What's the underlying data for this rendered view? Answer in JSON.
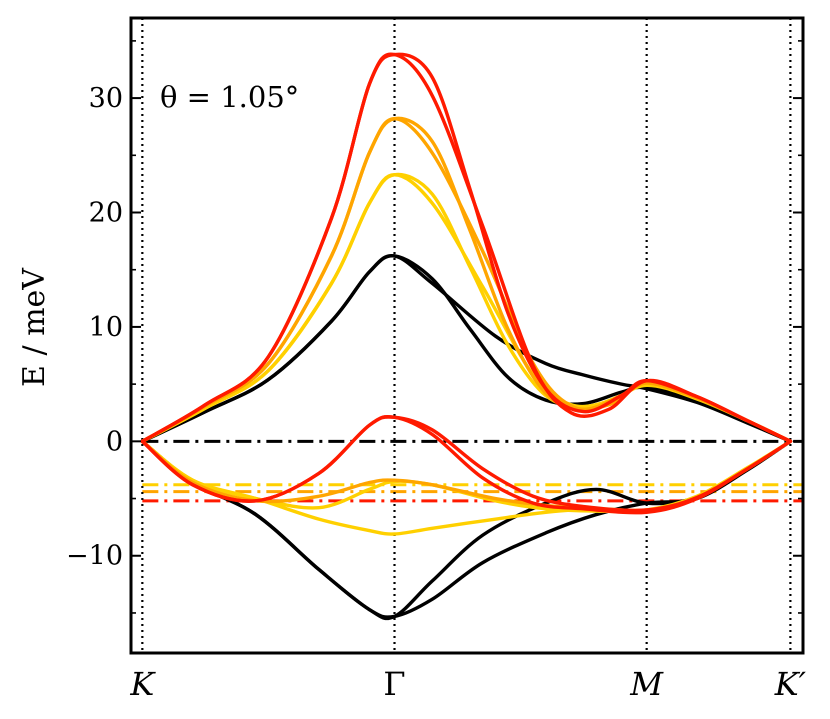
{
  "chart_data": {
    "type": "line",
    "title": "",
    "annotation": "θ = 1.05°",
    "ylabel": "E / meV",
    "xlabel": "",
    "ylim": [
      -18.5,
      37
    ],
    "yticks": [
      -10,
      0,
      10,
      20,
      30
    ],
    "ytick_labels": [
      "−10",
      "0",
      "10",
      "20",
      "30"
    ],
    "k_points": [
      {
        "label": "K",
        "x": 0.0,
        "italic": true
      },
      {
        "label": "Γ",
        "x": 1.0,
        "italic": false
      },
      {
        "label": "M",
        "x": 2.0,
        "italic": true
      },
      {
        "label": "K′",
        "x": 2.57,
        "italic": true
      }
    ],
    "xlim": [
      -0.045,
      2.62
    ],
    "grid": false,
    "colors": {
      "black": "#000000",
      "yellow": "#ffd000",
      "orange": "#ffa500",
      "red": "#ff1a00"
    },
    "reference_lines": [
      {
        "y": 0.0,
        "color": "#000000",
        "style": "dashdot"
      },
      {
        "y": -3.8,
        "color": "#ffd000",
        "style": "dashdot"
      },
      {
        "y": -4.4,
        "color": "#ffa500",
        "style": "dashdot"
      },
      {
        "y": -5.2,
        "color": "#ff1a00",
        "style": "dashdot"
      }
    ],
    "series": [
      {
        "color": "#000000",
        "x": [
          0,
          0.25,
          0.5,
          0.75,
          0.9,
          1.0,
          1.15,
          1.4,
          1.6,
          1.75,
          1.9,
          2.0,
          2.2,
          2.4,
          2.57
        ],
        "y": [
          0,
          2.6,
          5.4,
          10.5,
          14.8,
          16.2,
          13.8,
          9.2,
          6.8,
          5.8,
          5.0,
          4.6,
          3.4,
          1.6,
          0
        ]
      },
      {
        "color": "#000000",
        "x": [
          0,
          0.25,
          0.5,
          0.75,
          0.9,
          1.0,
          1.15,
          1.3,
          1.45,
          1.6,
          1.75,
          1.9,
          2.0,
          2.2,
          2.4,
          2.57
        ],
        "y": [
          0,
          2.6,
          5.4,
          10.5,
          14.8,
          16.2,
          14.2,
          9.8,
          5.6,
          3.6,
          3.3,
          4.3,
          4.7,
          3.6,
          1.7,
          0
        ]
      },
      {
        "color": "#000000",
        "x": [
          0,
          0.2,
          0.45,
          0.7,
          0.9,
          1.0,
          1.15,
          1.35,
          1.6,
          1.8,
          2.0,
          2.2,
          2.4,
          2.57
        ],
        "y": [
          0,
          -3.6,
          -6.4,
          -11.2,
          -14.7,
          -15.3,
          -12.2,
          -8.2,
          -5.4,
          -4.2,
          -5.4,
          -4.9,
          -2.4,
          0
        ]
      },
      {
        "color": "#000000",
        "x": [
          0,
          0.2,
          0.45,
          0.7,
          0.9,
          1.0,
          1.15,
          1.35,
          1.6,
          1.8,
          2.0,
          2.2,
          2.4,
          2.57
        ],
        "y": [
          0,
          -3.6,
          -6.4,
          -11.2,
          -14.7,
          -15.3,
          -13.8,
          -10.6,
          -8.0,
          -6.4,
          -5.4,
          -5.0,
          -2.5,
          0
        ]
      },
      {
        "color": "#ffd000",
        "x": [
          0,
          0.25,
          0.5,
          0.75,
          0.9,
          1.0,
          1.15,
          1.35,
          1.55,
          1.7,
          1.85,
          2.0,
          2.2,
          2.4,
          2.57
        ],
        "y": [
          0,
          2.9,
          6.2,
          13.8,
          20.8,
          23.3,
          20.8,
          13.5,
          5.8,
          3.2,
          3.5,
          4.9,
          3.7,
          1.8,
          0
        ]
      },
      {
        "color": "#ffd000",
        "x": [
          0,
          0.25,
          0.5,
          0.75,
          0.9,
          1.0,
          1.15,
          1.3,
          1.45,
          1.6,
          1.75,
          1.9,
          2.0,
          2.2,
          2.4,
          2.57
        ],
        "y": [
          0,
          2.9,
          6.2,
          13.8,
          20.8,
          23.3,
          21.6,
          15.2,
          8.4,
          4.0,
          3.0,
          4.0,
          5.0,
          3.8,
          1.8,
          0
        ]
      },
      {
        "color": "#ffd000",
        "x": [
          0,
          0.2,
          0.45,
          0.7,
          0.9,
          1.0,
          1.15,
          1.4,
          1.6,
          1.8,
          2.0,
          2.2,
          2.4,
          2.57
        ],
        "y": [
          0,
          -3.4,
          -5.0,
          -5.8,
          -4.2,
          -3.5,
          -3.8,
          -5.2,
          -5.9,
          -6.1,
          -6.0,
          -4.8,
          -2.3,
          0
        ]
      },
      {
        "color": "#ffd000",
        "x": [
          0,
          0.2,
          0.45,
          0.7,
          0.9,
          1.0,
          1.15,
          1.4,
          1.6,
          1.8,
          2.0,
          2.2,
          2.4,
          2.57
        ],
        "y": [
          0,
          -3.4,
          -5.0,
          -6.8,
          -7.8,
          -8.1,
          -7.6,
          -6.8,
          -6.2,
          -5.9,
          -6.0,
          -4.9,
          -2.4,
          0
        ]
      },
      {
        "color": "#ffa500",
        "x": [
          0,
          0.25,
          0.5,
          0.75,
          0.9,
          1.0,
          1.15,
          1.35,
          1.55,
          1.7,
          1.85,
          2.0,
          2.2,
          2.4,
          2.57
        ],
        "y": [
          0,
          3.1,
          6.8,
          16.2,
          25.2,
          28.2,
          25.2,
          16.6,
          6.8,
          3.1,
          3.2,
          5.1,
          3.8,
          1.8,
          0
        ]
      },
      {
        "color": "#ffa500",
        "x": [
          0,
          0.25,
          0.5,
          0.75,
          0.9,
          1.0,
          1.15,
          1.3,
          1.45,
          1.6,
          1.75,
          1.9,
          2.0,
          2.2,
          2.4,
          2.57
        ],
        "y": [
          0,
          3.1,
          6.8,
          16.2,
          25.2,
          28.2,
          26.2,
          18.4,
          9.8,
          4.2,
          2.8,
          4.0,
          5.1,
          3.8,
          1.8,
          0
        ]
      },
      {
        "color": "#ffa500",
        "x": [
          0,
          0.2,
          0.45,
          0.7,
          0.9,
          1.0,
          1.15,
          1.4,
          1.6,
          1.8,
          2.0,
          2.2,
          2.4,
          2.57
        ],
        "y": [
          0,
          -3.6,
          -5.2,
          -4.8,
          -3.6,
          -3.4,
          -3.8,
          -5.0,
          -5.6,
          -5.9,
          -6.0,
          -4.9,
          -2.4,
          0
        ]
      },
      {
        "color": "#ff1a00",
        "x": [
          0,
          0.25,
          0.5,
          0.75,
          0.9,
          1.0,
          1.15,
          1.35,
          1.55,
          1.7,
          1.85,
          2.0,
          2.2,
          2.4,
          2.57
        ],
        "y": [
          0,
          3.2,
          7.4,
          19.5,
          31.2,
          33.8,
          30.2,
          18.8,
          6.6,
          2.5,
          2.8,
          5.3,
          3.9,
          1.8,
          0
        ]
      },
      {
        "color": "#ff1a00",
        "x": [
          0,
          0.25,
          0.5,
          0.75,
          0.9,
          1.0,
          1.15,
          1.3,
          1.45,
          1.6,
          1.75,
          1.9,
          2.0,
          2.2,
          2.4,
          2.57
        ],
        "y": [
          0,
          3.2,
          7.4,
          19.5,
          31.2,
          33.8,
          31.8,
          22.0,
          11.2,
          4.6,
          2.6,
          4.0,
          5.3,
          3.9,
          1.8,
          0
        ]
      },
      {
        "color": "#ff1a00",
        "x": [
          0,
          0.2,
          0.45,
          0.7,
          0.9,
          1.0,
          1.15,
          1.35,
          1.55,
          1.75,
          2.0,
          2.2,
          2.4,
          2.57
        ],
        "y": [
          0,
          -3.8,
          -5.2,
          -2.8,
          1.4,
          2.1,
          0.6,
          -3.2,
          -5.4,
          -5.9,
          -6.2,
          -5.0,
          -2.4,
          0
        ]
      },
      {
        "color": "#ff1a00",
        "x": [
          0,
          0.2,
          0.45,
          0.7,
          0.9,
          1.0,
          1.15,
          1.35,
          1.55,
          1.75,
          2.0,
          2.2,
          2.4,
          2.57
        ],
        "y": [
          0,
          -3.8,
          -5.2,
          -2.8,
          1.4,
          2.1,
          1.0,
          -2.4,
          -4.8,
          -5.7,
          -6.0,
          -4.9,
          -2.4,
          0
        ]
      }
    ]
  }
}
